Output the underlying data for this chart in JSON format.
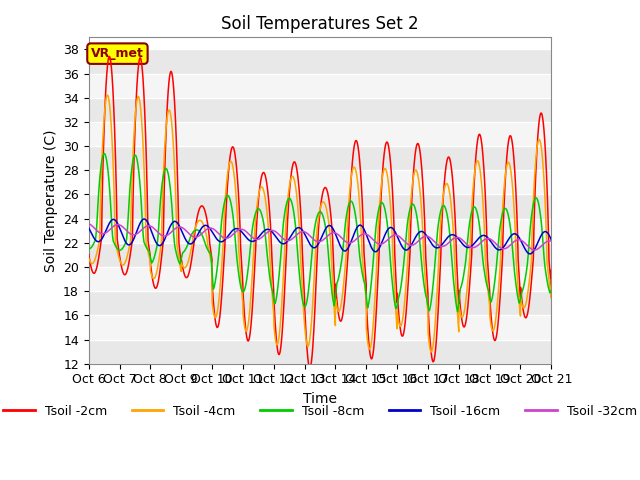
{
  "title": "Soil Temperatures Set 2",
  "xlabel": "Time",
  "ylabel": "Soil Temperature (C)",
  "ylim": [
    12,
    39
  ],
  "xlim": [
    0,
    360
  ],
  "colors": {
    "Tsoil -2cm": "#FF0000",
    "Tsoil -4cm": "#FFA500",
    "Tsoil -8cm": "#00CC00",
    "Tsoil -16cm": "#0000CC",
    "Tsoil -32cm": "#CC44CC"
  },
  "x_tick_labels": [
    "Oct 6",
    "Oct 7",
    "Oct 8",
    "Oct 9",
    "Oct 10",
    "Oct 11",
    "Oct 12",
    "Oct 13",
    "Oct 14",
    "Oct 15",
    "Oct 16",
    "Oct 17",
    "Oct 18",
    "Oct 19",
    "Oct 20",
    "Oct 21"
  ],
  "annotation_text": "VR_met",
  "annotation_bg": "#FFFF00",
  "annotation_border": "#8B0000",
  "background_color": "#FFFFFF",
  "title_fontsize": 12,
  "axis_label_fontsize": 10,
  "tick_fontsize": 9
}
